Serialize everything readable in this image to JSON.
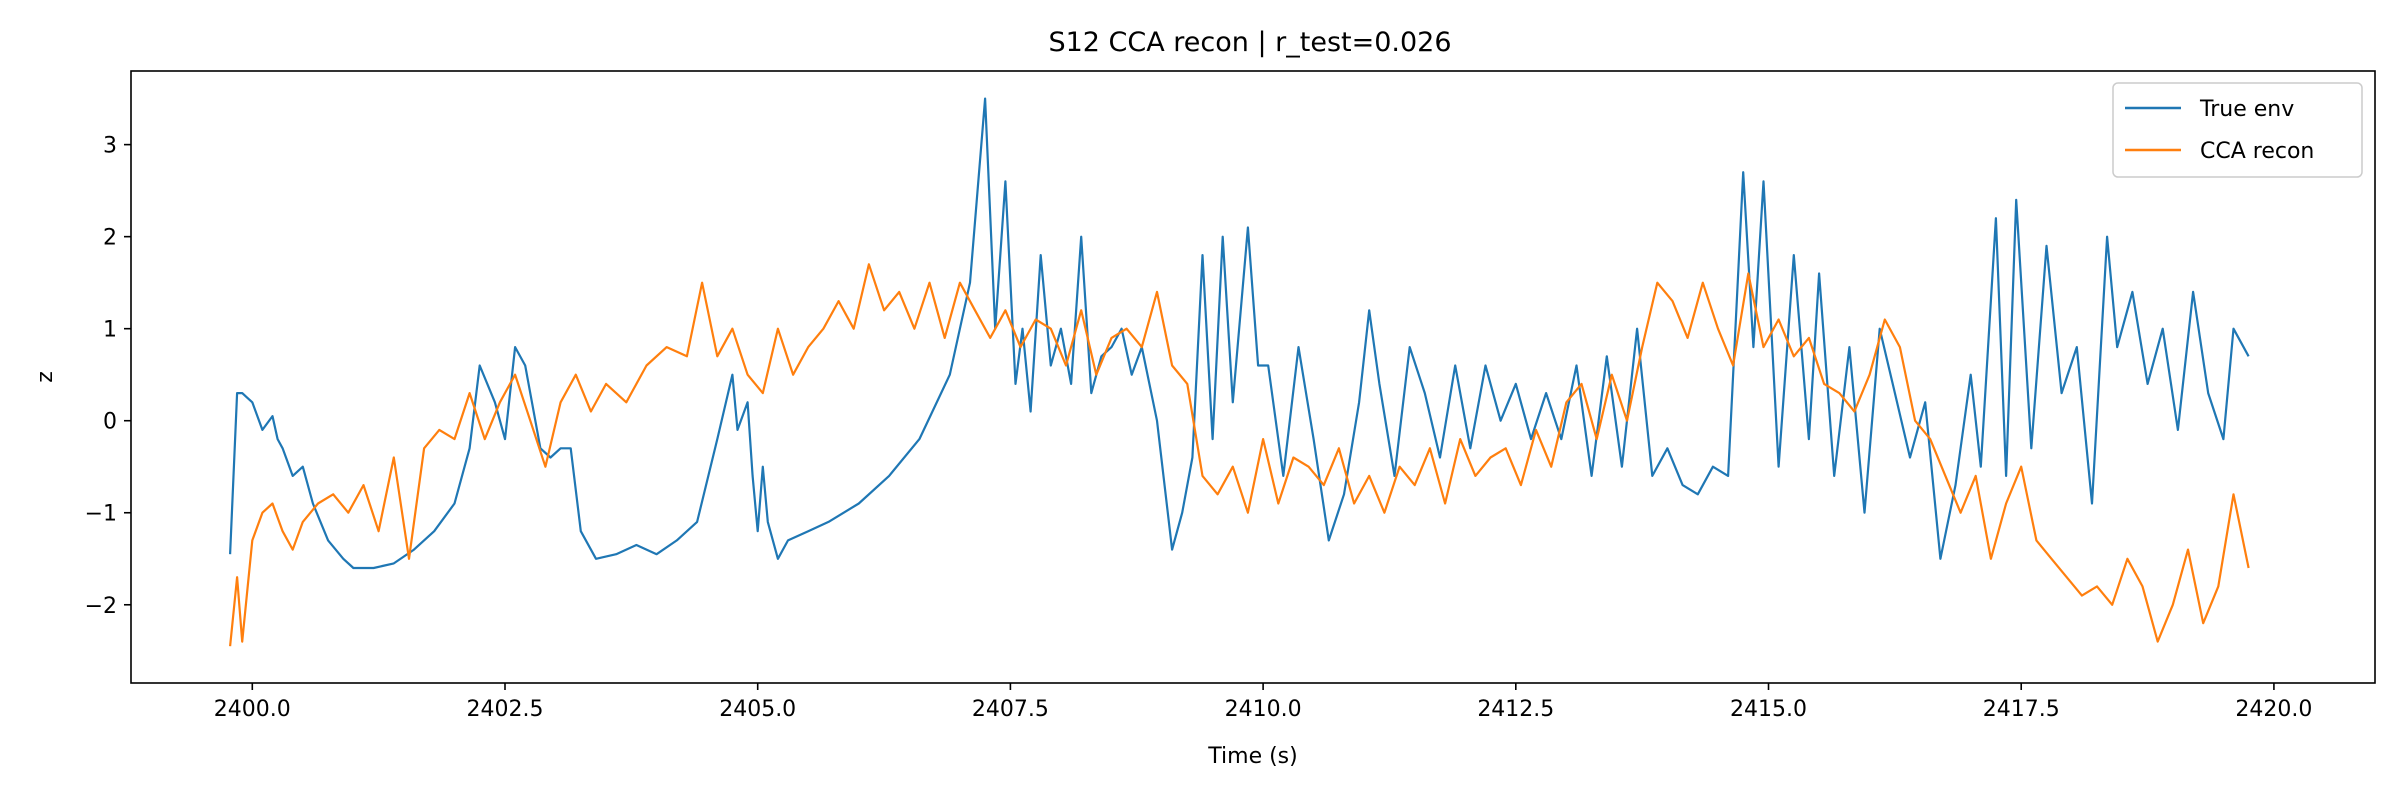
{
  "chart_data": {
    "type": "line",
    "title": "S12 CCA recon | r_test=0.026",
    "xlabel": "Time (s)",
    "ylabel": "z",
    "xlim": [
      2398.8,
      2421.0
    ],
    "ylim": [
      -2.85,
      3.8
    ],
    "xticks": [
      2400.0,
      2402.5,
      2405.0,
      2407.5,
      2410.0,
      2412.5,
      2415.0,
      2417.5,
      2420.0
    ],
    "xtick_labels": [
      "2400.0",
      "2402.5",
      "2405.0",
      "2407.5",
      "2410.0",
      "2412.5",
      "2415.0",
      "2417.5",
      "2420.0"
    ],
    "yticks": [
      -2,
      -1,
      0,
      1,
      2,
      3
    ],
    "ytick_labels": [
      "−2",
      "−1",
      "0",
      "1",
      "2",
      "3"
    ],
    "grid": false,
    "legend_position": "top-right",
    "series": [
      {
        "name": "True env",
        "color": "#1f77b4",
        "x": [
          2399.78,
          2399.85,
          2399.9,
          2399.95,
          2400.0,
          2400.1,
          2400.2,
          2400.25,
          2400.3,
          2400.4,
          2400.5,
          2400.6,
          2400.75,
          2400.9,
          2401.0,
          2401.2,
          2401.4,
          2401.6,
          2401.8,
          2402.0,
          2402.15,
          2402.25,
          2402.4,
          2402.5,
          2402.6,
          2402.7,
          2402.85,
          2402.95,
          2403.05,
          2403.15,
          2403.25,
          2403.4,
          2403.6,
          2403.8,
          2404.0,
          2404.2,
          2404.4,
          2404.6,
          2404.75,
          2404.8,
          2404.9,
          2404.95,
          2405.0,
          2405.05,
          2405.1,
          2405.2,
          2405.3,
          2405.5,
          2405.7,
          2406.0,
          2406.3,
          2406.6,
          2406.9,
          2407.1,
          2407.25,
          2407.35,
          2407.45,
          2407.55,
          2407.62,
          2407.7,
          2407.8,
          2407.9,
          2408.0,
          2408.1,
          2408.2,
          2408.3,
          2408.4,
          2408.5,
          2408.6,
          2408.7,
          2408.8,
          2408.95,
          2409.1,
          2409.2,
          2409.3,
          2409.4,
          2409.5,
          2409.6,
          2409.7,
          2409.85,
          2409.95,
          2410.05,
          2410.2,
          2410.35,
          2410.5,
          2410.65,
          2410.8,
          2410.95,
          2411.05,
          2411.15,
          2411.3,
          2411.45,
          2411.6,
          2411.75,
          2411.9,
          2412.05,
          2412.2,
          2412.35,
          2412.5,
          2412.65,
          2412.8,
          2412.95,
          2413.1,
          2413.25,
          2413.4,
          2413.55,
          2413.7,
          2413.85,
          2414.0,
          2414.15,
          2414.3,
          2414.45,
          2414.6,
          2414.75,
          2414.85,
          2414.95,
          2415.1,
          2415.25,
          2415.4,
          2415.5,
          2415.65,
          2415.8,
          2415.95,
          2416.1,
          2416.25,
          2416.4,
          2416.55,
          2416.7,
          2416.85,
          2417.0,
          2417.1,
          2417.25,
          2417.35,
          2417.45,
          2417.6,
          2417.75,
          2417.9,
          2418.05,
          2418.2,
          2418.35,
          2418.45,
          2418.6,
          2418.75,
          2418.9,
          2419.05,
          2419.2,
          2419.35,
          2419.5,
          2419.6,
          2419.75
        ],
        "y": [
          -1.45,
          0.3,
          0.3,
          0.25,
          0.2,
          -0.1,
          0.05,
          -0.2,
          -0.3,
          -0.6,
          -0.5,
          -0.9,
          -1.3,
          -1.5,
          -1.6,
          -1.6,
          -1.55,
          -1.4,
          -1.2,
          -0.9,
          -0.3,
          0.6,
          0.2,
          -0.2,
          0.8,
          0.6,
          -0.3,
          -0.4,
          -0.3,
          -0.3,
          -1.2,
          -1.5,
          -1.45,
          -1.35,
          -1.45,
          -1.3,
          -1.1,
          -0.2,
          0.5,
          -0.1,
          0.2,
          -0.6,
          -1.2,
          -0.5,
          -1.1,
          -1.5,
          -1.3,
          -1.2,
          -1.1,
          -0.9,
          -0.6,
          -0.2,
          0.5,
          1.5,
          3.5,
          1.0,
          2.6,
          0.4,
          1.0,
          0.1,
          1.8,
          0.6,
          1.0,
          0.4,
          2.0,
          0.3,
          0.7,
          0.8,
          1.0,
          0.5,
          0.8,
          0.0,
          -1.4,
          -1.0,
          -0.4,
          1.8,
          -0.2,
          2.0,
          0.2,
          2.1,
          0.6,
          0.6,
          -0.6,
          0.8,
          -0.2,
          -1.3,
          -0.8,
          0.2,
          1.2,
          0.4,
          -0.6,
          0.8,
          0.3,
          -0.4,
          0.6,
          -0.3,
          0.6,
          0.0,
          0.4,
          -0.2,
          0.3,
          -0.2,
          0.6,
          -0.6,
          0.7,
          -0.5,
          1.0,
          -0.6,
          -0.3,
          -0.7,
          -0.8,
          -0.5,
          -0.6,
          2.7,
          0.8,
          2.6,
          -0.5,
          1.8,
          -0.2,
          1.6,
          -0.6,
          0.8,
          -1.0,
          1.0,
          0.3,
          -0.4,
          0.2,
          -1.5,
          -0.7,
          0.5,
          -0.5,
          2.2,
          -0.6,
          2.4,
          -0.3,
          1.9,
          0.3,
          0.8,
          -0.9,
          2.0,
          0.8,
          1.4,
          0.4,
          1.0,
          -0.1,
          1.4,
          0.3,
          -0.2,
          1.0,
          0.7
        ]
      },
      {
        "name": "CCA recon",
        "color": "#ff7f0e",
        "x": [
          2399.78,
          2399.85,
          2399.9,
          2400.0,
          2400.1,
          2400.2,
          2400.3,
          2400.4,
          2400.5,
          2400.65,
          2400.8,
          2400.95,
          2401.1,
          2401.25,
          2401.4,
          2401.55,
          2401.7,
          2401.85,
          2402.0,
          2402.15,
          2402.3,
          2402.45,
          2402.6,
          2402.75,
          2402.9,
          2403.05,
          2403.2,
          2403.35,
          2403.5,
          2403.7,
          2403.9,
          2404.1,
          2404.3,
          2404.45,
          2404.6,
          2404.75,
          2404.9,
          2405.05,
          2405.2,
          2405.35,
          2405.5,
          2405.65,
          2405.8,
          2405.95,
          2406.1,
          2406.25,
          2406.4,
          2406.55,
          2406.7,
          2406.85,
          2407.0,
          2407.15,
          2407.3,
          2407.45,
          2407.6,
          2407.75,
          2407.9,
          2408.05,
          2408.2,
          2408.35,
          2408.5,
          2408.65,
          2408.8,
          2408.95,
          2409.1,
          2409.25,
          2409.4,
          2409.55,
          2409.7,
          2409.85,
          2410.0,
          2410.15,
          2410.3,
          2410.45,
          2410.6,
          2410.75,
          2410.9,
          2411.05,
          2411.2,
          2411.35,
          2411.5,
          2411.65,
          2411.8,
          2411.95,
          2412.1,
          2412.25,
          2412.4,
          2412.55,
          2412.7,
          2412.85,
          2413.0,
          2413.15,
          2413.3,
          2413.45,
          2413.6,
          2413.75,
          2413.9,
          2414.05,
          2414.2,
          2414.35,
          2414.5,
          2414.65,
          2414.8,
          2414.95,
          2415.1,
          2415.25,
          2415.4,
          2415.55,
          2415.7,
          2415.85,
          2416.0,
          2416.15,
          2416.3,
          2416.45,
          2416.6,
          2416.75,
          2416.9,
          2417.05,
          2417.2,
          2417.35,
          2417.5,
          2417.65,
          2417.8,
          2417.95,
          2418.1,
          2418.25,
          2418.4,
          2418.55,
          2418.7,
          2418.85,
          2419.0,
          2419.15,
          2419.3,
          2419.45,
          2419.6,
          2419.75
        ],
        "y": [
          -2.45,
          -1.7,
          -2.4,
          -1.3,
          -1.0,
          -0.9,
          -1.2,
          -1.4,
          -1.1,
          -0.9,
          -0.8,
          -1.0,
          -0.7,
          -1.2,
          -0.4,
          -1.5,
          -0.3,
          -0.1,
          -0.2,
          0.3,
          -0.2,
          0.2,
          0.5,
          0.0,
          -0.5,
          0.2,
          0.5,
          0.1,
          0.4,
          0.2,
          0.6,
          0.8,
          0.7,
          1.5,
          0.7,
          1.0,
          0.5,
          0.3,
          1.0,
          0.5,
          0.8,
          1.0,
          1.3,
          1.0,
          1.7,
          1.2,
          1.4,
          1.0,
          1.5,
          0.9,
          1.5,
          1.2,
          0.9,
          1.2,
          0.8,
          1.1,
          1.0,
          0.6,
          1.2,
          0.5,
          0.9,
          1.0,
          0.8,
          1.4,
          0.6,
          0.4,
          -0.6,
          -0.8,
          -0.5,
          -1.0,
          -0.2,
          -0.9,
          -0.4,
          -0.5,
          -0.7,
          -0.3,
          -0.9,
          -0.6,
          -1.0,
          -0.5,
          -0.7,
          -0.3,
          -0.9,
          -0.2,
          -0.6,
          -0.4,
          -0.3,
          -0.7,
          -0.1,
          -0.5,
          0.2,
          0.4,
          -0.2,
          0.5,
          0.0,
          0.8,
          1.5,
          1.3,
          0.9,
          1.5,
          1.0,
          0.6,
          1.6,
          0.8,
          1.1,
          0.7,
          0.9,
          0.4,
          0.3,
          0.1,
          0.5,
          1.1,
          0.8,
          0.0,
          -0.2,
          -0.6,
          -1.0,
          -0.6,
          -1.5,
          -0.9,
          -0.5,
          -1.3,
          -1.5,
          -1.7,
          -1.9,
          -1.8,
          -2.0,
          -1.5,
          -1.8,
          -2.4,
          -2.0,
          -1.4,
          -2.2,
          -1.8,
          -0.8,
          -1.6
        ]
      }
    ]
  }
}
